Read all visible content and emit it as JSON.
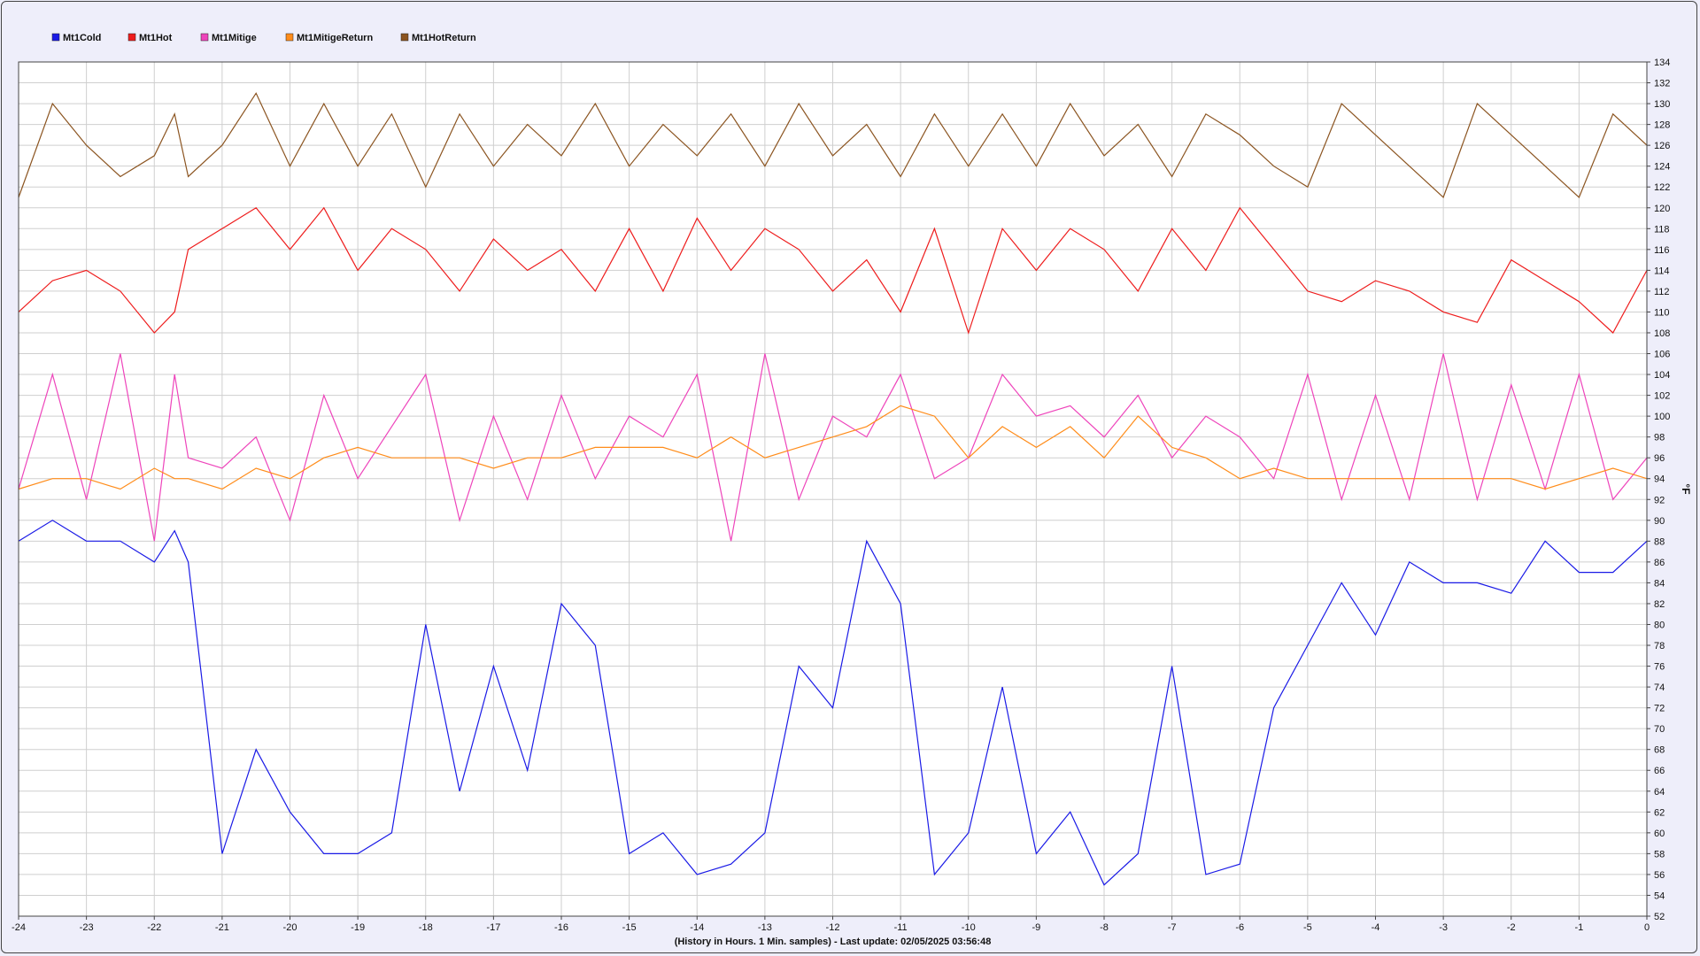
{
  "chart_data": {
    "type": "line",
    "title": "",
    "xlabel": "(History in Hours. 1 Min. samples) - Last update: 02/05/2025 03:56:48",
    "ylabel": "°F",
    "xlim": [
      -24,
      0
    ],
    "ylim": [
      52,
      134
    ],
    "x_ticks": [
      -24,
      -23,
      -22,
      -21,
      -20,
      -19,
      -18,
      -17,
      -16,
      -15,
      -14,
      -13,
      -12,
      -11,
      -10,
      -9,
      -8,
      -7,
      -6,
      -5,
      -4,
      -3,
      -2,
      -1,
      0
    ],
    "y_ticks": [
      52,
      54,
      56,
      58,
      60,
      62,
      64,
      66,
      68,
      70,
      72,
      74,
      76,
      78,
      80,
      82,
      84,
      86,
      88,
      90,
      92,
      94,
      96,
      98,
      100,
      102,
      104,
      106,
      108,
      110,
      112,
      114,
      116,
      118,
      120,
      122,
      124,
      126,
      128,
      130,
      132,
      134
    ],
    "grid": true,
    "legend_position": "top-left",
    "x": [
      -24,
      -23.5,
      -23,
      -22.5,
      -22,
      -21.7,
      -21.5,
      -21,
      -20.5,
      -20,
      -19.5,
      -19,
      -18.5,
      -18,
      -17.5,
      -17,
      -16.5,
      -16,
      -15.5,
      -15,
      -14.5,
      -14,
      -13.5,
      -13,
      -12.5,
      -12,
      -11.5,
      -11,
      -10.5,
      -10,
      -9.5,
      -9,
      -8.5,
      -8,
      -7.5,
      -7,
      -6.5,
      -6,
      -5.5,
      -5,
      -4.5,
      -4,
      -3.5,
      -3,
      -2.5,
      -2,
      -1.5,
      -1,
      -0.5,
      0
    ],
    "series": [
      {
        "name": "Mt1Cold",
        "color": "#1a1ae6",
        "values": [
          88,
          90,
          88,
          88,
          86,
          89,
          86,
          58,
          68,
          62,
          58,
          58,
          60,
          80,
          64,
          76,
          66,
          82,
          78,
          58,
          60,
          56,
          57,
          60,
          76,
          72,
          88,
          82,
          56,
          60,
          74,
          58,
          62,
          55,
          58,
          76,
          56,
          57,
          72,
          78,
          84,
          79,
          86,
          84,
          84,
          83,
          88,
          85,
          85,
          88
        ]
      },
      {
        "name": "Mt1Hot",
        "color": "#ee1c1c",
        "values": [
          110,
          113,
          114,
          112,
          108,
          110,
          116,
          118,
          120,
          116,
          120,
          114,
          118,
          116,
          112,
          117,
          114,
          116,
          112,
          118,
          112,
          119,
          114,
          118,
          116,
          112,
          115,
          110,
          118,
          108,
          118,
          114,
          118,
          116,
          112,
          118,
          114,
          120,
          116,
          112,
          111,
          113,
          112,
          110,
          109,
          115,
          113,
          111,
          108,
          114
        ]
      },
      {
        "name": "Mt1Mitige",
        "color": "#ee44bb",
        "values": [
          93,
          104,
          92,
          106,
          88,
          104,
          96,
          95,
          98,
          90,
          102,
          94,
          99,
          104,
          90,
          100,
          92,
          102,
          94,
          100,
          98,
          104,
          88,
          106,
          92,
          100,
          98,
          104,
          94,
          96,
          104,
          100,
          101,
          98,
          102,
          96,
          100,
          98,
          94,
          104,
          92,
          102,
          92,
          106,
          92,
          103,
          93,
          104,
          92,
          96
        ]
      },
      {
        "name": "Mt1MitigeReturn",
        "color": "#ff8c1a",
        "values": [
          93,
          94,
          94,
          93,
          95,
          94,
          94,
          93,
          95,
          94,
          96,
          97,
          96,
          96,
          96,
          95,
          96,
          96,
          97,
          97,
          97,
          96,
          98,
          96,
          97,
          98,
          99,
          101,
          100,
          96,
          99,
          97,
          99,
          96,
          100,
          97,
          96,
          94,
          95,
          94,
          94,
          94,
          94,
          94,
          94,
          94,
          93,
          94,
          95,
          94
        ]
      },
      {
        "name": "Mt1HotReturn",
        "color": "#8b5420",
        "values": [
          121,
          130,
          126,
          123,
          125,
          129,
          123,
          126,
          131,
          124,
          130,
          124,
          129,
          122,
          129,
          124,
          128,
          125,
          130,
          124,
          128,
          125,
          129,
          124,
          130,
          125,
          128,
          123,
          129,
          124,
          129,
          124,
          130,
          125,
          128,
          123,
          129,
          127,
          124,
          122,
          130,
          127,
          124,
          121,
          130,
          127,
          124,
          121,
          129,
          126
        ]
      }
    ]
  }
}
